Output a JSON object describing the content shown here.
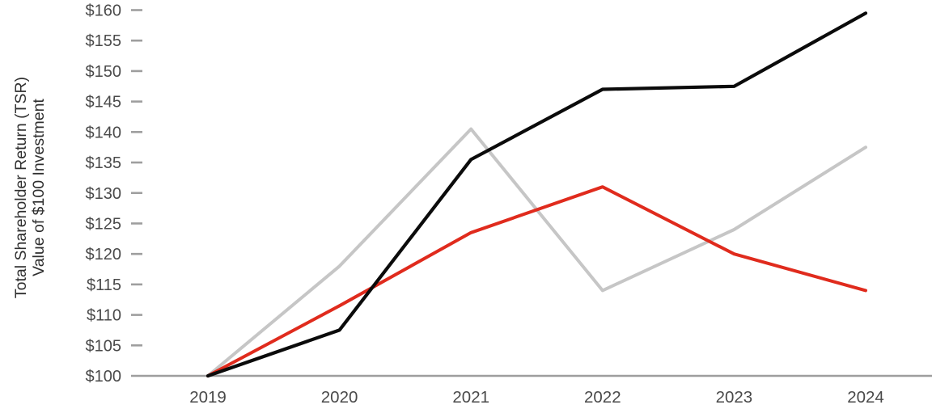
{
  "chart_data": {
    "type": "line",
    "title": "",
    "y_axis_label_line1": "Total Shareholder Return (TSR)",
    "y_axis_label_line2": "Value of $100 Investment",
    "categories": [
      "2019",
      "2020",
      "2021",
      "2022",
      "2023",
      "2024"
    ],
    "x": [
      2019,
      2020,
      2021,
      2022,
      2023,
      2024
    ],
    "y_tick_labels": [
      "$100",
      "$105",
      "$110",
      "$115",
      "$120",
      "$125",
      "$130",
      "$135",
      "$140",
      "$145",
      "$150",
      "$155",
      "$160"
    ],
    "ylim": [
      100,
      160
    ],
    "grid": false,
    "legend_position": "none",
    "series": [
      {
        "name": "gray-series",
        "color": "#c6c6c6",
        "stroke_width": 4,
        "values": [
          100,
          118,
          140.5,
          114,
          124,
          137.5
        ]
      },
      {
        "name": "red-series",
        "color": "#e02b1d",
        "stroke_width": 4,
        "values": [
          100,
          111.5,
          123.5,
          131,
          120,
          114
        ]
      },
      {
        "name": "black-series",
        "color": "#0b0b0b",
        "stroke_width": 4.2,
        "values": [
          100,
          107.5,
          135.5,
          147,
          147.5,
          159.5
        ]
      }
    ],
    "axis_color": "#9e9e9e",
    "text_color": "#4a4a4a"
  }
}
